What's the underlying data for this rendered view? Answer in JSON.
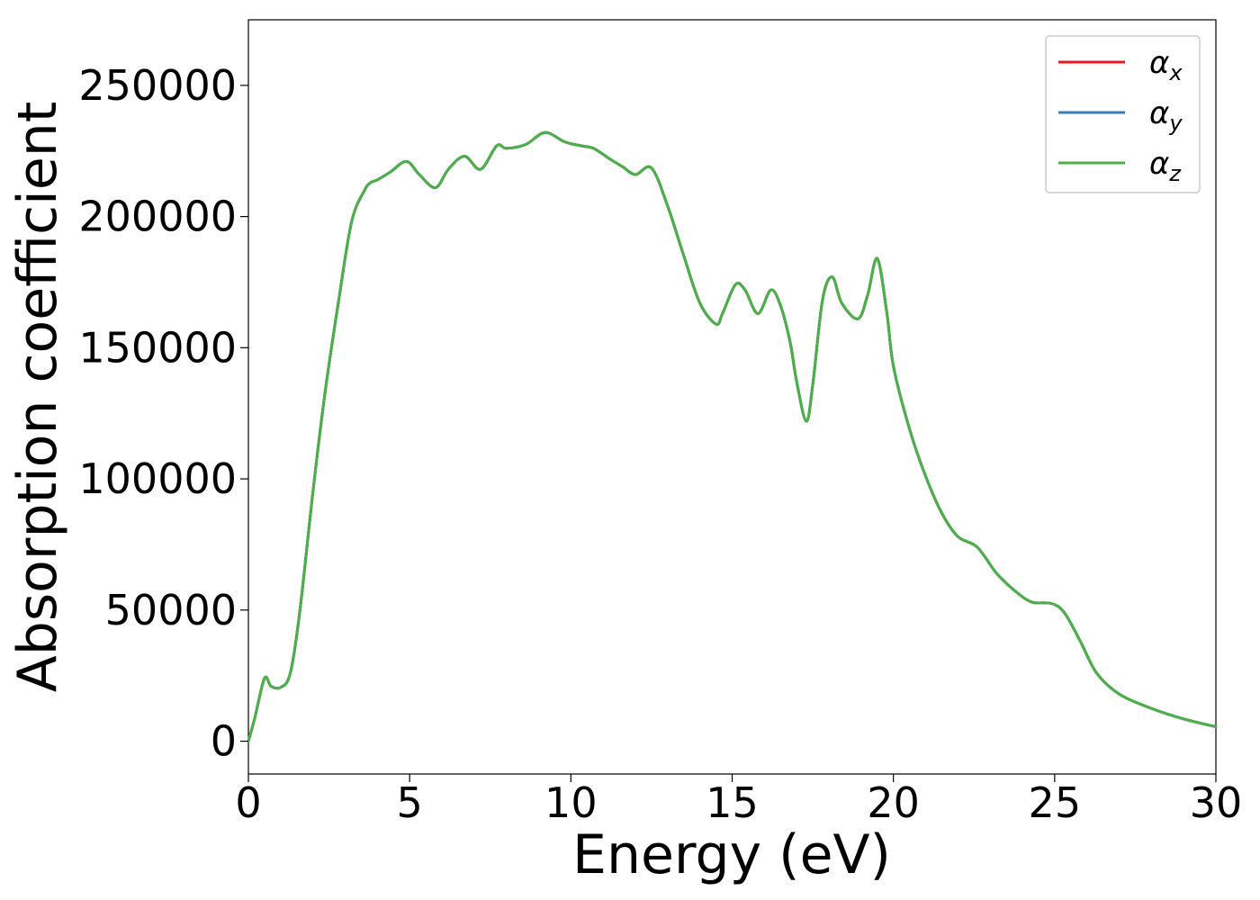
{
  "chart_data": {
    "type": "line",
    "title": "",
    "xlabel": "Energy (eV)",
    "ylabel": "Absorption coefficient",
    "xlim": [
      0,
      30
    ],
    "ylim": [
      -12500,
      275000
    ],
    "xticks": [
      0,
      5,
      10,
      15,
      20,
      25,
      30
    ],
    "yticks": [
      0,
      50000,
      100000,
      150000,
      200000,
      250000
    ],
    "xtick_labels": [
      "0",
      "5",
      "10",
      "15",
      "20",
      "25",
      "30"
    ],
    "ytick_labels": [
      "0",
      "50000",
      "100000",
      "150000",
      "200000",
      "250000"
    ],
    "grid": false,
    "legend_position": "top-right",
    "x": [
      0,
      0.2,
      0.5,
      0.7,
      1.0,
      1.3,
      1.6,
      2.0,
      2.4,
      2.8,
      3.2,
      3.6,
      3.8,
      4.0,
      4.4,
      4.9,
      5.3,
      5.8,
      6.2,
      6.7,
      7.2,
      7.7,
      8.0,
      8.6,
      9.2,
      9.8,
      10.3,
      10.7,
      11.2,
      11.6,
      12.0,
      12.5,
      13.0,
      13.5,
      14.0,
      14.5,
      14.7,
      15.1,
      15.4,
      15.8,
      16.2,
      16.5,
      16.8,
      17.0,
      17.3,
      17.5,
      17.8,
      18.1,
      18.4,
      18.9,
      19.2,
      19.5,
      19.8,
      20.0,
      20.5,
      21.0,
      21.5,
      22.0,
      22.6,
      23.2,
      23.8,
      24.3,
      24.9,
      25.3,
      25.8,
      26.3,
      27.0,
      28.0,
      29.0,
      30.0
    ],
    "series": [
      {
        "name": "α_x",
        "color": "#e41a1c",
        "values": [
          0,
          9000,
          24000,
          21000,
          20500,
          26000,
          50000,
          95000,
          135000,
          168000,
          198000,
          210000,
          213000,
          214000,
          217000,
          221000,
          216000,
          211000,
          218000,
          223000,
          218000,
          227000,
          226000,
          227500,
          232000,
          228500,
          227000,
          226000,
          222000,
          219000,
          216000,
          218500,
          204000,
          185000,
          167000,
          159000,
          163000,
          174000,
          172000,
          163000,
          172000,
          166000,
          152000,
          137000,
          122000,
          136000,
          168000,
          177000,
          167000,
          161000,
          170000,
          184000,
          163000,
          143000,
          119000,
          101000,
          87000,
          78000,
          74000,
          64000,
          57000,
          53000,
          52500,
          49000,
          38000,
          26000,
          18000,
          12500,
          8500,
          5500
        ]
      },
      {
        "name": "α_y",
        "color": "#377eb8",
        "values": [
          0,
          9000,
          24000,
          21000,
          20500,
          26000,
          50000,
          95000,
          135000,
          168000,
          198000,
          210000,
          213000,
          214000,
          217000,
          221000,
          216000,
          211000,
          218000,
          223000,
          218000,
          227000,
          226000,
          227500,
          232000,
          228500,
          227000,
          226000,
          222000,
          219000,
          216000,
          218500,
          204000,
          185000,
          167000,
          159000,
          163000,
          174000,
          172000,
          163000,
          172000,
          166000,
          152000,
          137000,
          122000,
          136000,
          168000,
          177000,
          167000,
          161000,
          170000,
          184000,
          163000,
          143000,
          119000,
          101000,
          87000,
          78000,
          74000,
          64000,
          57000,
          53000,
          52500,
          49000,
          38000,
          26000,
          18000,
          12500,
          8500,
          5500
        ]
      },
      {
        "name": "α_z",
        "color": "#4daf4a",
        "values": [
          0,
          9000,
          24000,
          21000,
          20500,
          26000,
          50000,
          95000,
          135000,
          168000,
          198000,
          210000,
          213000,
          214000,
          217000,
          221000,
          216000,
          211000,
          218000,
          223000,
          218000,
          227000,
          226000,
          227500,
          232000,
          228500,
          227000,
          226000,
          222000,
          219000,
          216000,
          218500,
          204000,
          185000,
          167000,
          159000,
          163000,
          174000,
          172000,
          163000,
          172000,
          166000,
          152000,
          137000,
          122000,
          136000,
          168000,
          177000,
          167000,
          161000,
          170000,
          184000,
          163000,
          143000,
          119000,
          101000,
          87000,
          78000,
          74000,
          64000,
          57000,
          53000,
          52500,
          49000,
          38000,
          26000,
          18000,
          12500,
          8500,
          5500
        ]
      }
    ],
    "legend": [
      {
        "symbol": "α",
        "sub": "x"
      },
      {
        "symbol": "α",
        "sub": "y"
      },
      {
        "symbol": "α",
        "sub": "z"
      }
    ]
  }
}
